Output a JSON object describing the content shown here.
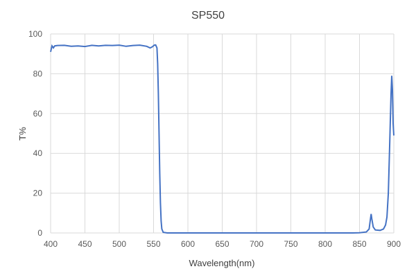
{
  "chart_data": {
    "type": "line",
    "title": "SP550",
    "xlabel": "Wavelength(nm)",
    "ylabel": "T%",
    "xlim": [
      400,
      900
    ],
    "ylim": [
      0,
      100
    ],
    "xticks": [
      400,
      450,
      500,
      550,
      600,
      650,
      700,
      750,
      800,
      850,
      900
    ],
    "yticks": [
      0,
      20,
      40,
      60,
      80,
      100
    ],
    "grid": {
      "x": true,
      "y": true
    },
    "line_color": "#4472C4",
    "grid_color": "#D9D9D9",
    "x": [
      400,
      402,
      404,
      406,
      410,
      420,
      430,
      440,
      450,
      460,
      470,
      480,
      490,
      500,
      510,
      520,
      530,
      540,
      545,
      548,
      551,
      553,
      555,
      556,
      557,
      558,
      559,
      560,
      561,
      562,
      564,
      570,
      600,
      650,
      700,
      750,
      800,
      840,
      850,
      860,
      864,
      866,
      867,
      868,
      870,
      873,
      880,
      885,
      888,
      890,
      892,
      894,
      896,
      897,
      898,
      899,
      900
    ],
    "y": [
      91,
      94,
      93,
      94,
      94.2,
      94.3,
      93.8,
      94,
      93.7,
      94.3,
      94,
      94.3,
      94.2,
      94.4,
      93.8,
      94.2,
      94.4,
      93.8,
      93,
      93.5,
      94.4,
      94.5,
      93,
      85,
      70,
      50,
      30,
      15,
      6,
      2,
      0.3,
      0,
      0,
      0,
      0,
      0,
      0,
      0,
      0.1,
      0.5,
      2,
      7,
      9.5,
      7,
      3,
      1.5,
      1.3,
      2,
      4,
      8,
      20,
      45,
      70,
      79,
      72,
      55,
      49
    ]
  }
}
